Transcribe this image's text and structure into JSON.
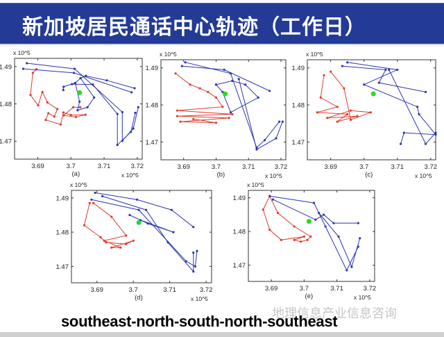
{
  "slide": {
    "title": "新加坡居民通话中心轨迹（工作日）",
    "caption": "southeast-north-south-north-southeast",
    "watermark": "地理信息产业信息咨询",
    "title_bg_color": "#233a96"
  },
  "chart_data": [
    {
      "type": "line",
      "panel_label": "(a)",
      "x_multiplier": "x 10^5",
      "y_multiplier": "x 10^5",
      "xlim": [
        3.683,
        3.7215
      ],
      "ylim": [
        1.4652,
        1.4922
      ],
      "xticks": [
        "3.69",
        "3.7",
        "3.71",
        "3.72"
      ],
      "xtick_values": [
        3.69,
        3.7,
        3.71,
        3.72
      ],
      "yticks": [
        "1.47",
        "1.48",
        "1.49"
      ],
      "ytick_values": [
        1.47,
        1.48,
        1.49
      ],
      "grid": false,
      "colors": {
        "red": "#e03a2a",
        "blue": "#2a35b0",
        "center": "#22dd22"
      },
      "red_paths": [
        [
          [
            3.6896,
            1.4893
          ],
          [
            3.6885,
            1.4883
          ],
          [
            3.6878,
            1.4824
          ],
          [
            3.6901,
            1.4796
          ],
          [
            3.6914,
            1.4832
          ],
          [
            3.6929,
            1.4804
          ],
          [
            3.6959,
            1.4786
          ],
          [
            3.695,
            1.4766
          ],
          [
            3.6932,
            1.4775
          ],
          [
            3.6924,
            1.4757
          ],
          [
            3.6969,
            1.4745
          ],
          [
            3.6977,
            1.4777
          ],
          [
            3.7,
            1.477
          ],
          [
            3.7044,
            1.4771
          ],
          [
            3.7015,
            1.4765
          ],
          [
            3.6978,
            1.4769
          ],
          [
            3.7007,
            1.4791
          ],
          [
            3.7028,
            1.4791
          ]
        ]
      ],
      "blue_paths": [
        [
          [
            3.6856,
            1.4894
          ],
          [
            3.7009,
            1.4883
          ],
          [
            3.7183,
            1.4831
          ]
        ],
        [
          [
            3.6867,
            1.4909
          ],
          [
            3.7011,
            1.4894
          ],
          [
            3.7155,
            1.4778
          ],
          [
            3.7155,
            1.4701
          ],
          [
            3.7188,
            1.4734
          ],
          [
            3.7203,
            1.4791
          ]
        ],
        [
          [
            3.7045,
            1.4875
          ],
          [
            3.7108,
            1.4863
          ],
          [
            3.7192,
            1.4842
          ]
        ],
        [
          [
            3.7045,
            1.4875
          ],
          [
            3.7029,
            1.4869
          ],
          [
            3.7013,
            1.4856
          ],
          [
            3.6978,
            1.4846
          ],
          [
            3.6977,
            1.4837
          ]
        ],
        [
          [
            3.7003,
            1.4853
          ],
          [
            3.7066,
            1.4852
          ],
          [
            3.714,
            1.4773
          ],
          [
            3.714,
            1.469
          ],
          [
            3.7181,
            1.4725
          ],
          [
            3.7194,
            1.4776
          ]
        ],
        [
          [
            3.7013,
            1.4856
          ],
          [
            3.7026,
            1.4806
          ],
          [
            3.702,
            1.4783
          ],
          [
            3.705,
            1.4791
          ],
          [
            3.707,
            1.4817
          ],
          [
            3.7029,
            1.4869
          ]
        ]
      ],
      "center": [
        3.7026,
        1.483
      ]
    },
    {
      "type": "line",
      "panel_label": "(b)",
      "x_multiplier": "x 10^5",
      "y_multiplier": "x 10^5",
      "xlim": [
        3.683,
        3.7215
      ],
      "ylim": [
        1.4652,
        1.4922
      ],
      "xticks": [
        "3.69",
        "3.7",
        "3.71",
        "3.72"
      ],
      "xtick_values": [
        3.69,
        3.7,
        3.71,
        3.72
      ],
      "yticks": [
        "1.47",
        "1.48",
        "1.49"
      ],
      "ytick_values": [
        1.47,
        1.48,
        1.49
      ],
      "grid": false,
      "colors": {
        "red": "#e03a2a",
        "blue": "#2a35b0",
        "center": "#22dd22"
      },
      "red_paths": [
        [
          [
            3.6875,
            1.4885
          ],
          [
            3.692,
            1.4855
          ],
          [
            3.695,
            1.4845
          ],
          [
            3.6975,
            1.4835
          ],
          [
            3.7,
            1.482
          ],
          [
            3.702,
            1.4795
          ],
          [
            3.688,
            1.4785
          ],
          [
            3.705,
            1.4775
          ],
          [
            3.688,
            1.477
          ],
          [
            3.704,
            1.4765
          ],
          [
            3.689,
            1.4755
          ],
          [
            3.7,
            1.4752
          ],
          [
            3.693,
            1.4762
          ]
        ]
      ],
      "blue_paths": [
        [
          [
            3.6895,
            1.4905
          ],
          [
            3.7025,
            1.4895
          ],
          [
            3.7165,
            1.4838
          ]
        ],
        [
          [
            3.6905,
            1.4915
          ],
          [
            3.7045,
            1.4885
          ],
          [
            3.7125,
            1.4685
          ],
          [
            3.715,
            1.4705
          ],
          [
            3.7195,
            1.4755
          ]
        ],
        [
          [
            3.7,
            1.4855
          ],
          [
            3.705,
            1.4865
          ],
          [
            3.709,
            1.4855
          ],
          [
            3.713,
            1.482
          ],
          [
            3.7045,
            1.478
          ],
          [
            3.702,
            1.4835
          ],
          [
            3.7,
            1.4855
          ]
        ],
        [
          [
            3.707,
            1.487
          ],
          [
            3.7125,
            1.468
          ],
          [
            3.7185,
            1.471
          ],
          [
            3.7205,
            1.4755
          ]
        ]
      ],
      "center": [
        3.7028,
        1.483
      ]
    },
    {
      "type": "line",
      "panel_label": "(c)",
      "x_multiplier": "x 10^5",
      "y_multiplier": "x 10^5",
      "xlim": [
        3.683,
        3.7215
      ],
      "ylim": [
        1.4652,
        1.4922
      ],
      "xticks": [
        "3.69",
        "3.7",
        "3.71",
        "3.72"
      ],
      "xtick_values": [
        3.69,
        3.7,
        3.71,
        3.72
      ],
      "yticks": [
        "1.47",
        "1.48",
        "1.49"
      ],
      "ytick_values": [
        1.47,
        1.48,
        1.49
      ],
      "grid": false,
      "colors": {
        "red": "#e03a2a",
        "blue": "#2a35b0",
        "center": "#22dd22"
      },
      "red_paths": [
        [
          [
            3.688,
            1.488
          ],
          [
            3.687,
            1.482
          ],
          [
            3.692,
            1.4795
          ],
          [
            3.686,
            1.478
          ],
          [
            3.695,
            1.4775
          ],
          [
            3.692,
            1.4755
          ],
          [
            3.698,
            1.477
          ],
          [
            3.689,
            1.4765
          ],
          [
            3.696,
            1.4785
          ],
          [
            3.702,
            1.478
          ],
          [
            3.696,
            1.476
          ],
          [
            3.694,
            1.4845
          ],
          [
            3.69,
            1.489
          ]
        ]
      ],
      "blue_paths": [
        [
          [
            3.6935,
            1.4905
          ],
          [
            3.7065,
            1.4895
          ],
          [
            3.7045,
            1.486
          ],
          [
            3.7185,
            1.4835
          ]
        ],
        [
          [
            3.695,
            1.4915
          ],
          [
            3.71,
            1.4895
          ],
          [
            3.7,
            1.4855
          ],
          [
            3.716,
            1.4795
          ],
          [
            3.7165,
            1.4775
          ],
          [
            3.7215,
            1.472
          ],
          [
            3.712,
            1.4725
          ],
          [
            3.711,
            1.4695
          ]
        ],
        [
          [
            3.7075,
            1.4895
          ],
          [
            3.7185,
            1.4695
          ],
          [
            3.7215,
            1.4725
          ]
        ]
      ],
      "center": [
        3.7028,
        1.483
      ]
    },
    {
      "type": "line",
      "panel_label": "(d)",
      "x_multiplier": "x 10^5",
      "y_multiplier": "x 10^5",
      "xlim": [
        3.683,
        3.7215
      ],
      "ylim": [
        1.4652,
        1.4922
      ],
      "xticks": [
        "3.69",
        "3.7",
        "3.71",
        "3.72"
      ],
      "xtick_values": [
        3.69,
        3.7,
        3.71,
        3.72
      ],
      "yticks": [
        "1.47",
        "1.48",
        "1.49"
      ],
      "ytick_values": [
        1.47,
        1.48,
        1.49
      ],
      "grid": false,
      "colors": {
        "red": "#e03a2a",
        "blue": "#2a35b0",
        "center": "#22dd22"
      },
      "red_paths": [
        [
          [
            3.688,
            1.4885
          ],
          [
            3.6865,
            1.482
          ],
          [
            3.691,
            1.4785
          ],
          [
            3.6925,
            1.477
          ],
          [
            3.698,
            1.4765
          ],
          [
            3.7,
            1.4775
          ],
          [
            3.694,
            1.4755
          ],
          [
            3.6965,
            1.4755
          ],
          [
            3.692,
            1.4775
          ],
          [
            3.698,
            1.479
          ],
          [
            3.694,
            1.4845
          ],
          [
            3.689,
            1.4885
          ]
        ]
      ],
      "blue_paths": [
        [
          [
            3.6895,
            1.4915
          ],
          [
            3.701,
            1.4895
          ],
          [
            3.7105,
            1.4865
          ],
          [
            3.7165,
            1.4815
          ]
        ],
        [
          [
            3.6885,
            1.4895
          ],
          [
            3.7015,
            1.4865
          ],
          [
            3.7145,
            1.4715
          ],
          [
            3.717,
            1.47
          ],
          [
            3.7175,
            1.4745
          ]
        ],
        [
          [
            3.6915,
            1.4905
          ],
          [
            3.7035,
            1.4865
          ],
          [
            3.7095,
            1.477
          ],
          [
            3.7165,
            1.4685
          ],
          [
            3.7165,
            1.474
          ]
        ],
        [
          [
            3.699,
            1.485
          ],
          [
            3.704,
            1.4825
          ],
          [
            3.711,
            1.48
          ],
          [
            3.702,
            1.4835
          ]
        ]
      ],
      "center": [
        3.7015,
        1.4828
      ]
    },
    {
      "type": "line",
      "panel_label": "(e)",
      "x_multiplier": "x 10^5",
      "y_multiplier": "x 10^5",
      "xlim": [
        3.683,
        3.7215
      ],
      "ylim": [
        1.4652,
        1.4922
      ],
      "xticks": [
        "3.69",
        "3.7",
        "3.71",
        "3.72"
      ],
      "xtick_values": [
        3.69,
        3.7,
        3.71,
        3.72
      ],
      "yticks": [
        "1.47",
        "1.48",
        "1.49"
      ],
      "ytick_values": [
        1.47,
        1.48,
        1.49
      ],
      "grid": false,
      "colors": {
        "red": "#e03a2a",
        "blue": "#2a35b0",
        "center": "#22dd22"
      },
      "red_paths": [
        [
          [
            3.6895,
            1.4905
          ],
          [
            3.6875,
            1.4865
          ],
          [
            3.6895,
            1.4805
          ],
          [
            3.693,
            1.4775
          ],
          [
            3.7,
            1.4785
          ],
          [
            3.697,
            1.4775
          ],
          [
            3.699,
            1.477
          ],
          [
            3.701,
            1.4775
          ],
          [
            3.702,
            1.4785
          ],
          [
            3.697,
            1.4815
          ],
          [
            3.692,
            1.4855
          ],
          [
            3.6895,
            1.4905
          ]
        ]
      ],
      "blue_paths": [
        [
          [
            3.6895,
            1.4905
          ],
          [
            3.703,
            1.4885
          ],
          [
            3.7065,
            1.4815
          ],
          [
            3.713,
            1.4685
          ],
          [
            3.7165,
            1.4755
          ]
        ],
        [
          [
            3.6905,
            1.4895
          ],
          [
            3.7035,
            1.4835
          ],
          [
            3.706,
            1.485
          ],
          [
            3.709,
            1.4825
          ],
          [
            3.7165,
            1.4825
          ]
        ],
        [
          [
            3.7045,
            1.4855
          ],
          [
            3.7105,
            1.4785
          ],
          [
            3.7145,
            1.4695
          ],
          [
            3.717,
            1.478
          ]
        ]
      ],
      "center": [
        3.7015,
        1.483
      ]
    }
  ]
}
